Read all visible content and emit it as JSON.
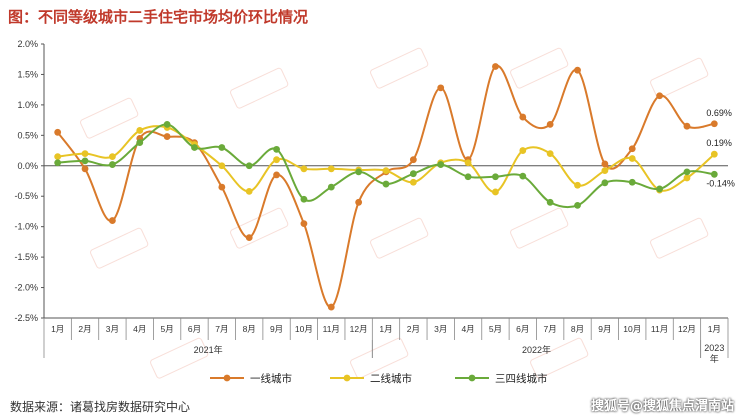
{
  "title": "图：不同等级城市二手住宅市场均价环比情况",
  "source": "数据来源：诸葛找房数据研究中心",
  "watermark": "搜狐号@搜狐焦点渭南站",
  "chart_data": {
    "type": "line",
    "categories": [
      "1月",
      "2月",
      "3月",
      "4月",
      "5月",
      "6月",
      "7月",
      "8月",
      "9月",
      "10月",
      "11月",
      "12月",
      "1月",
      "2月",
      "3月",
      "4月",
      "5月",
      "6月",
      "7月",
      "8月",
      "9月",
      "10月",
      "11月",
      "12月",
      "1月"
    ],
    "year_groups": [
      {
        "label": "2021年",
        "start": 0,
        "end": 11
      },
      {
        "label": "2022年",
        "start": 12,
        "end": 23
      },
      {
        "label": "2023年",
        "start": 24,
        "end": 24
      }
    ],
    "ylim": [
      -2.5,
      2.0
    ],
    "yticks": [
      "2.0%",
      "1.5%",
      "1.0%",
      "0.5%",
      "0.0%",
      "-0.5%",
      "-1.0%",
      "-1.5%",
      "-2.0%",
      "-2.5%"
    ],
    "series": [
      {
        "name": "一线城市",
        "color": "#d97a2b",
        "values": [
          0.55,
          -0.05,
          -0.9,
          0.45,
          0.48,
          0.38,
          -0.35,
          -1.18,
          -0.15,
          -0.95,
          -2.32,
          -0.6,
          -0.1,
          0.1,
          1.28,
          0.1,
          1.63,
          0.8,
          0.68,
          1.57,
          0.03,
          0.28,
          1.15,
          0.65,
          0.69
        ]
      },
      {
        "name": "二线城市",
        "color": "#e8c425",
        "values": [
          0.15,
          0.2,
          0.15,
          0.58,
          0.63,
          0.35,
          0.0,
          -0.42,
          0.1,
          -0.05,
          -0.05,
          -0.07,
          -0.08,
          -0.27,
          0.05,
          0.05,
          -0.43,
          0.25,
          0.2,
          -0.32,
          -0.08,
          0.12,
          -0.4,
          -0.2,
          0.19
        ]
      },
      {
        "name": "三四线城市",
        "color": "#6aaa3a",
        "values": [
          0.05,
          0.08,
          0.02,
          0.38,
          0.68,
          0.3,
          0.3,
          0.0,
          0.27,
          -0.55,
          -0.35,
          -0.1,
          -0.3,
          -0.13,
          0.02,
          -0.18,
          -0.18,
          -0.17,
          -0.6,
          -0.65,
          -0.28,
          -0.27,
          -0.38,
          -0.1,
          -0.14
        ]
      }
    ],
    "annotations": [
      "0.69%",
      "0.19%",
      "-0.14%"
    ],
    "grid": false,
    "legend": "bottom"
  }
}
